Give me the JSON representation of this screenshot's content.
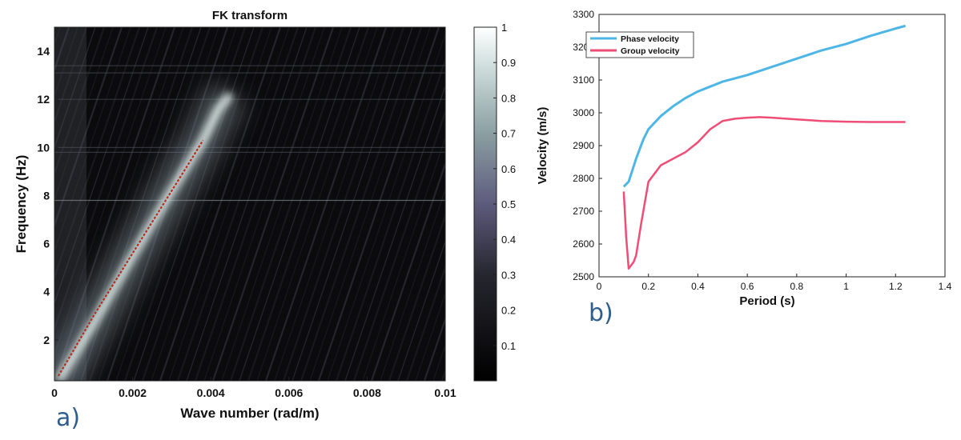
{
  "panel_a_label": "a)",
  "panel_b_label": "b)",
  "colors": {
    "heatmap_dark": "#0b0b0d",
    "heatmap_light": "#ffffff",
    "picked_curve": "#b03020",
    "phase": "#4db6e6",
    "group": "#ee4d75"
  },
  "chart_data": [
    {
      "type": "heatmap",
      "title": "FK transform",
      "xlabel": "Wave number (rad/m)",
      "ylabel": "Frequency (Hz)",
      "xlim": [
        0,
        0.01
      ],
      "ylim": [
        0.3,
        15
      ],
      "xticks": [
        0,
        0.002,
        0.004,
        0.006,
        0.008,
        0.01
      ],
      "xtick_labels": [
        "0",
        "0.002",
        "0.004",
        "0.006",
        "0.008",
        "0.01"
      ],
      "yticks": [
        2,
        4,
        6,
        8,
        10,
        12,
        14
      ],
      "ytick_labels": [
        "2",
        "4",
        "6",
        "8",
        "10",
        "12",
        "14"
      ],
      "colorbar": {
        "range": [
          0,
          1
        ],
        "ticks": [
          0.1,
          0.2,
          0.3,
          0.4,
          0.5,
          0.6,
          0.7,
          0.8,
          0.9,
          1
        ],
        "tick_labels": [
          "0.1",
          "0.2",
          "0.3",
          "0.4",
          "0.5",
          "0.6",
          "0.7",
          "0.8",
          "0.9",
          "1"
        ]
      },
      "ridge": {
        "x": [
          0.0001,
          0.001,
          0.002,
          0.003,
          0.0038,
          0.0042,
          0.0045
        ],
        "y": [
          0.3,
          2.7,
          5.5,
          8.2,
          10.3,
          11.6,
          12.2
        ]
      },
      "picked_dispersion_curve": {
        "x": [
          0.0001,
          0.0005,
          0.001,
          0.0015,
          0.002,
          0.0025,
          0.003,
          0.0035,
          0.0038
        ],
        "y": [
          0.5,
          1.6,
          3.0,
          4.3,
          5.6,
          6.9,
          8.2,
          9.5,
          10.3
        ]
      }
    },
    {
      "type": "line",
      "xlabel": "Period (s)",
      "ylabel": "Velocity (m/s)",
      "xlim": [
        0,
        1.4
      ],
      "ylim": [
        2500,
        3300
      ],
      "xticks": [
        0,
        0.2,
        0.4,
        0.6,
        0.8,
        1,
        1.2,
        1.4
      ],
      "xtick_labels": [
        "0",
        "0.2",
        "0.4",
        "0.6",
        "0.8",
        "1",
        "1.2",
        "1.4"
      ],
      "yticks": [
        2500,
        2600,
        2700,
        2800,
        2900,
        3000,
        3100,
        3200,
        3300
      ],
      "ytick_labels": [
        "2500",
        "2600",
        "2700",
        "2800",
        "2900",
        "3000",
        "3100",
        "3200",
        "3300"
      ],
      "legend_position": "top-left",
      "series": [
        {
          "name": "Phase velocity",
          "x": [
            0.1,
            0.12,
            0.15,
            0.18,
            0.2,
            0.25,
            0.3,
            0.35,
            0.4,
            0.45,
            0.5,
            0.6,
            0.7,
            0.8,
            0.9,
            1.0,
            1.1,
            1.2,
            1.24
          ],
          "y": [
            2775,
            2790,
            2860,
            2920,
            2950,
            2990,
            3020,
            3045,
            3065,
            3080,
            3095,
            3115,
            3140,
            3165,
            3190,
            3210,
            3235,
            3257,
            3265
          ]
        },
        {
          "name": "Group velocity",
          "x": [
            0.1,
            0.11,
            0.12,
            0.13,
            0.14,
            0.15,
            0.17,
            0.2,
            0.25,
            0.3,
            0.35,
            0.4,
            0.45,
            0.5,
            0.55,
            0.6,
            0.65,
            0.7,
            0.8,
            0.9,
            1.0,
            1.1,
            1.2,
            1.24
          ],
          "y": [
            2760,
            2620,
            2525,
            2535,
            2545,
            2565,
            2660,
            2790,
            2840,
            2860,
            2880,
            2910,
            2950,
            2975,
            2982,
            2985,
            2987,
            2985,
            2980,
            2975,
            2973,
            2972,
            2972,
            2972
          ]
        }
      ]
    }
  ]
}
